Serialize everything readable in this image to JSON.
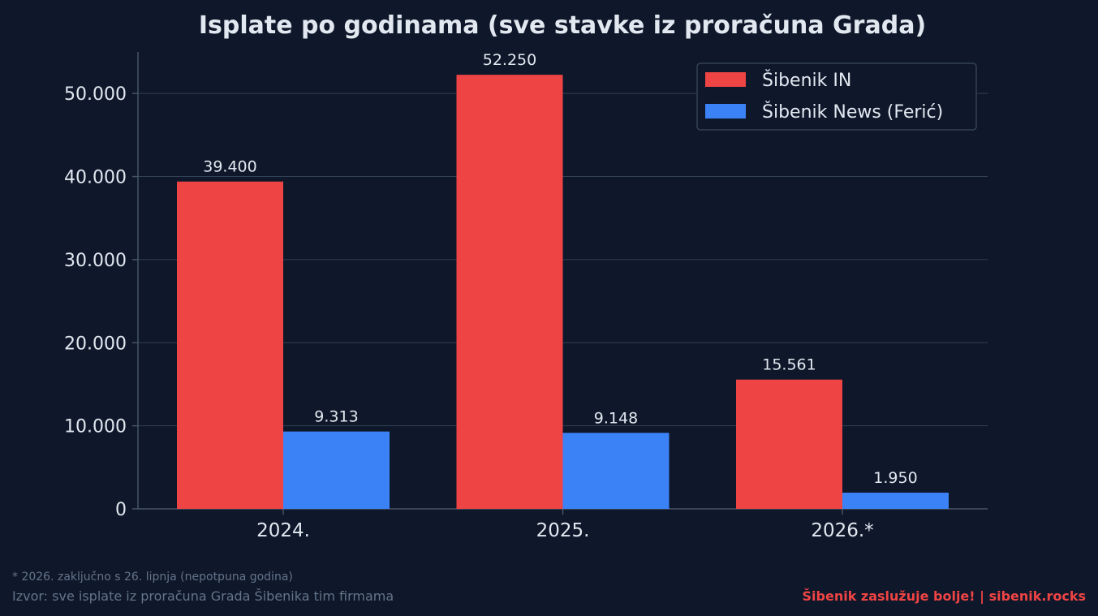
{
  "chart_data": {
    "type": "bar",
    "title": "Isplate po godinama (sve stavke iz proračuna Grada)",
    "categories": [
      "2024.",
      "2025.",
      "2026.*"
    ],
    "series": [
      {
        "name": "Šibenik IN",
        "color": "#ef4444",
        "values": [
          39400,
          52250,
          15561
        ],
        "labels": [
          "39.400",
          "52.250",
          "15.561"
        ]
      },
      {
        "name": "Šibenik News (Ferić)",
        "color": "#3b82f6",
        "values": [
          9313,
          9148,
          1950
        ],
        "labels": [
          "9.313",
          "9.148",
          "1.950"
        ]
      }
    ],
    "ylim": [
      0,
      55000
    ],
    "yticks": [
      0,
      10000,
      20000,
      30000,
      40000,
      50000
    ],
    "ytick_labels": [
      "0",
      "10.000",
      "20.000",
      "30.000",
      "40.000",
      "50.000"
    ],
    "grid": true,
    "legend_position": "top-right"
  },
  "footer": {
    "note": "* 2026. zaključno s 26. lipnja (nepotpuna godina)",
    "source": "Izvor: sve isplate iz proračuna Grada Šibenika tim firmama",
    "brand": "Šibenik zaslužuje bolje!  |  sibenik.rocks"
  },
  "colors": {
    "background": "#0f172a",
    "grid": "#334155",
    "axis": "#475569",
    "text": "#e2e8f0",
    "muted": "#64748b",
    "accent": "#ef4444"
  }
}
